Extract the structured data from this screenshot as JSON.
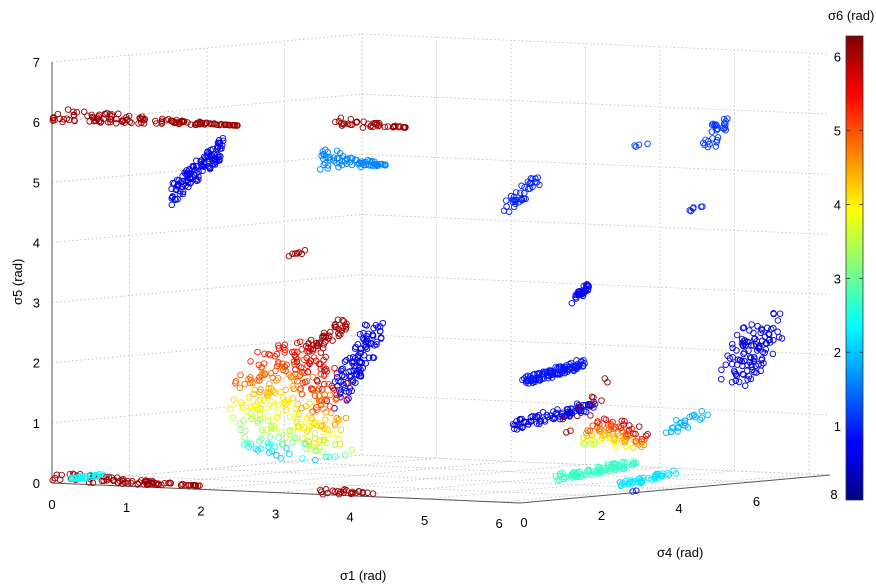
{
  "chart_data": {
    "type": "scatter",
    "dimensions": "3d",
    "xlabel": "σ1 (rad)",
    "ylabel": "σ4 (rad)",
    "zlabel": "σ5 (rad)",
    "colorbar_label": "σ6 (rad)",
    "xlim": [
      0,
      6.28
    ],
    "ylim": [
      0,
      8
    ],
    "zlim": [
      0,
      7
    ],
    "clim": [
      0,
      6.28
    ],
    "colormap": "jet",
    "marker": "open-circle",
    "grid": true,
    "x_ticks": [
      "0",
      "1",
      "2",
      "3",
      "4",
      "5",
      "6"
    ],
    "y_ticks": [
      "0",
      "2",
      "4",
      "6",
      "8"
    ],
    "z_ticks": [
      "0",
      "1",
      "2",
      "3",
      "4",
      "5",
      "6",
      "7"
    ],
    "colorbar_ticks": [
      "1",
      "2",
      "3",
      "4",
      "5",
      "6"
    ],
    "clusters": [
      {
        "x": [
          0.0,
          2.5
        ],
        "y": [
          0.0,
          0.0
        ],
        "z": [
          6.0,
          6.25
        ],
        "c": 6.1,
        "n": 140,
        "shape": "band"
      },
      {
        "x": [
          1.6,
          2.3
        ],
        "y": [
          0.0,
          0.0
        ],
        "z": [
          4.7,
          5.9
        ],
        "c": 0.7,
        "n": 120,
        "shape": "blob"
      },
      {
        "x": [
          3.6,
          4.5
        ],
        "y": [
          0.0,
          0.0
        ],
        "z": [
          5.4,
          5.8
        ],
        "c": 1.6,
        "n": 70,
        "shape": "band"
      },
      {
        "x": [
          3.8,
          4.8
        ],
        "y": [
          0.0,
          0.0
        ],
        "z": [
          6.1,
          6.3
        ],
        "c": 6.1,
        "n": 45,
        "shape": "band"
      },
      {
        "x": [
          1.9,
          2.1
        ],
        "y": [
          2.4,
          2.6
        ],
        "z": [
          3.7,
          3.85
        ],
        "c": 6.1,
        "n": 8,
        "shape": "blob"
      },
      {
        "x": [
          2.1,
          2.6
        ],
        "y": [
          2.5,
          2.8
        ],
        "z": [
          2.1,
          2.8
        ],
        "c": 6.1,
        "n": 45,
        "shape": "blob"
      },
      {
        "x": [
          2.4,
          2.9
        ],
        "y": [
          2.6,
          3.0
        ],
        "z": [
          1.2,
          2.8
        ],
        "c": 0.7,
        "n": 110,
        "shape": "blob"
      },
      {
        "x": [
          1.2,
          2.4
        ],
        "y": [
          2.2,
          3.2
        ],
        "z": [
          0.8,
          2.3
        ],
        "c": 4.7,
        "n": 260,
        "shape": "fan"
      },
      {
        "x": [
          1.2,
          2.4
        ],
        "y": [
          2.2,
          3.2
        ],
        "z": [
          0.3,
          0.9
        ],
        "c": 2.9,
        "n": 70,
        "shape": "fan"
      },
      {
        "x": [
          0.0,
          2.0
        ],
        "y": [
          0.0,
          0.0
        ],
        "z": [
          0.0,
          0.2
        ],
        "c": 6.1,
        "n": 90,
        "shape": "band"
      },
      {
        "x": [
          0.2,
          0.7
        ],
        "y": [
          0.0,
          0.0
        ],
        "z": [
          0.05,
          0.2
        ],
        "c": 2.4,
        "n": 30,
        "shape": "blob"
      },
      {
        "x": [
          4.8,
          5.6
        ],
        "y": [
          2.9,
          3.1
        ],
        "z": [
          1.7,
          2.2
        ],
        "c": 0.9,
        "n": 110,
        "shape": "blob"
      },
      {
        "x": [
          4.5,
          5.6
        ],
        "y": [
          3.1,
          3.3
        ],
        "z": [
          0.9,
          1.5
        ],
        "c": 0.7,
        "n": 90,
        "shape": "blob"
      },
      {
        "x": [
          5.4,
          6.2
        ],
        "y": [
          3.2,
          3.5
        ],
        "z": [
          0.7,
          1.2
        ],
        "c": 4.8,
        "n": 90,
        "shape": "fan"
      },
      {
        "x": [
          5.0,
          6.0
        ],
        "y": [
          3.3,
          3.6
        ],
        "z": [
          0.1,
          0.5
        ],
        "c": 2.7,
        "n": 90,
        "shape": "blob"
      },
      {
        "x": [
          5.6,
          6.2
        ],
        "y": [
          3.8,
          4.2
        ],
        "z": [
          0.0,
          0.3
        ],
        "c": 2.2,
        "n": 40,
        "shape": "blob"
      },
      {
        "x": [
          5.2,
          5.8
        ],
        "y": [
          3.1,
          3.3
        ],
        "z": [
          0.8,
          1.9
        ],
        "c": 6.1,
        "n": 12,
        "shape": "blob"
      },
      {
        "x": [
          3.6,
          4.4
        ],
        "y": [
          0.0,
          0.0
        ],
        "z": [
          0.0,
          0.15
        ],
        "c": 6.1,
        "n": 25,
        "shape": "band"
      },
      {
        "x": [
          4.8,
          5.2
        ],
        "y": [
          2.4,
          2.7
        ],
        "z": [
          4.6,
          5.3
        ],
        "c": 1.0,
        "n": 40,
        "shape": "blob"
      },
      {
        "x": [
          5.5,
          5.7
        ],
        "y": [
          2.8,
          3.0
        ],
        "z": [
          3.1,
          3.5
        ],
        "c": 0.8,
        "n": 30,
        "shape": "blob"
      },
      {
        "x": [
          6.0,
          6.2
        ],
        "y": [
          3.3,
          3.5
        ],
        "z": [
          5.7,
          5.8
        ],
        "c": 1.2,
        "n": 4,
        "shape": "blob"
      },
      {
        "x": [
          6.1,
          6.3
        ],
        "y": [
          4.5,
          4.7
        ],
        "z": [
          4.5,
          4.7
        ],
        "c": 1.0,
        "n": 6,
        "shape": "blob"
      },
      {
        "x": [
          6.1,
          6.3
        ],
        "y": [
          5.0,
          5.4
        ],
        "z": [
          5.5,
          6.2
        ],
        "c": 1.1,
        "n": 30,
        "shape": "blob"
      },
      {
        "x": [
          5.8,
          6.2
        ],
        "y": [
          4.6,
          5.0
        ],
        "z": [
          0.8,
          1.3
        ],
        "c": 1.9,
        "n": 25,
        "shape": "blob"
      },
      {
        "x": [
          5.8,
          6.2
        ],
        "y": [
          6.0,
          7.0
        ],
        "z": [
          1.5,
          2.8
        ],
        "c": 0.6,
        "n": 110,
        "shape": "blob"
      },
      {
        "x": [
          6.2,
          6.28
        ],
        "y": [
          3.0,
          3.2
        ],
        "z": [
          0.0,
          0.05
        ],
        "c": 0.9,
        "n": 2,
        "shape": "blob"
      }
    ]
  }
}
